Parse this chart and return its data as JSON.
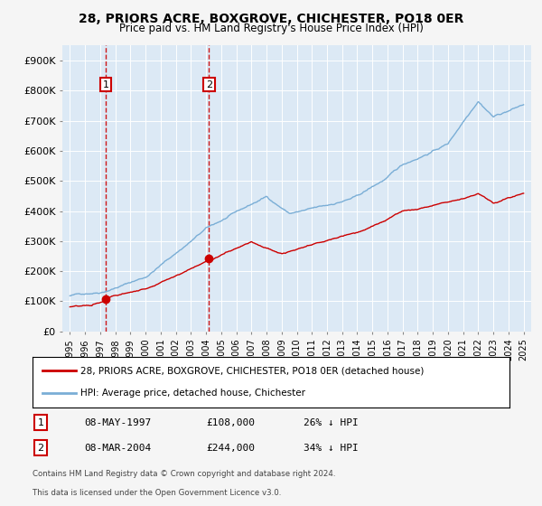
{
  "title": "28, PRIORS ACRE, BOXGROVE, CHICHESTER, PO18 0ER",
  "subtitle": "Price paid vs. HM Land Registry's House Price Index (HPI)",
  "legend_label_red": "28, PRIORS ACRE, BOXGROVE, CHICHESTER, PO18 0ER (detached house)",
  "legend_label_blue": "HPI: Average price, detached house, Chichester",
  "transaction1_label": "08-MAY-1997",
  "transaction1_price": "£108,000",
  "transaction1_hpi": "26% ↓ HPI",
  "transaction1_year": 1997.36,
  "transaction1_value": 108000,
  "transaction2_label": "08-MAR-2004",
  "transaction2_price": "£244,000",
  "transaction2_hpi": "34% ↓ HPI",
  "transaction2_year": 2004.19,
  "transaction2_value": 244000,
  "footer1": "Contains HM Land Registry data © Crown copyright and database right 2024.",
  "footer2": "This data is licensed under the Open Government Licence v3.0.",
  "ylim": [
    0,
    950000
  ],
  "xlim_start": 1994.5,
  "xlim_end": 2025.5,
  "plot_bg": "#dce9f5",
  "fig_bg": "#f0f0f0",
  "red_color": "#cc0000",
  "blue_color": "#7aaed6",
  "grid_color": "#ffffff",
  "yticks": [
    0,
    100000,
    200000,
    300000,
    400000,
    500000,
    600000,
    700000,
    800000,
    900000
  ],
  "ytick_labels": [
    "£0",
    "£100K",
    "£200K",
    "£300K",
    "£400K",
    "£500K",
    "£600K",
    "£700K",
    "£800K",
    "£900K"
  ],
  "xtick_years": [
    1995,
    1996,
    1997,
    1998,
    1999,
    2000,
    2001,
    2002,
    2003,
    2004,
    2005,
    2006,
    2007,
    2008,
    2009,
    2010,
    2011,
    2012,
    2013,
    2014,
    2015,
    2016,
    2017,
    2018,
    2019,
    2020,
    2021,
    2022,
    2023,
    2024,
    2025
  ]
}
